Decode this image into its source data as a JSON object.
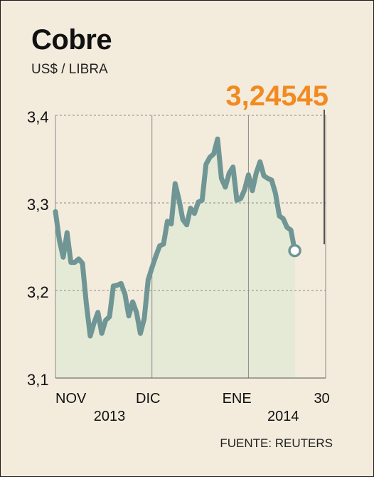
{
  "chart_data": {
    "type": "line",
    "title": "Cobre",
    "subtitle": "US$ / LIBRA",
    "source": "FUENTE: REUTERS",
    "last_value_label": "3,24545",
    "ylim": [
      3.1,
      3.4
    ],
    "yticks": [
      3.1,
      3.2,
      3.3,
      3.4
    ],
    "ytick_labels": [
      "3,1",
      "3,2",
      "3,3",
      "3,4"
    ],
    "xlim": [
      0,
      70
    ],
    "x_month_lines": [
      0,
      25,
      50,
      70
    ],
    "x_labels": [
      {
        "text": "NOV",
        "x": 4
      },
      {
        "text": "DIC",
        "x": 24
      },
      {
        "text": "ENE",
        "x": 47
      },
      {
        "text": "30",
        "x": 69
      }
    ],
    "year_labels": [
      {
        "text": "2013",
        "x": 14
      },
      {
        "text": "2014",
        "x": 59
      }
    ],
    "grid": true,
    "colors": {
      "line": "#6f9694",
      "area": "#e5ead7",
      "highlight": "#f28a20",
      "grid": "#8a8a8a",
      "marker_fill": "#ffffff"
    },
    "series": [
      {
        "values": [
          [
            0,
            3.29
          ],
          [
            1,
            3.258
          ],
          [
            2,
            3.238
          ],
          [
            3,
            3.266
          ],
          [
            4,
            3.232
          ],
          [
            5,
            3.232
          ],
          [
            6,
            3.236
          ],
          [
            7,
            3.231
          ],
          [
            8,
            3.185
          ],
          [
            9,
            3.148
          ],
          [
            10,
            3.163
          ],
          [
            11,
            3.175
          ],
          [
            12,
            3.151
          ],
          [
            13,
            3.166
          ],
          [
            14,
            3.17
          ],
          [
            15,
            3.205
          ],
          [
            16,
            3.206
          ],
          [
            17,
            3.208
          ],
          [
            18,
            3.196
          ],
          [
            19,
            3.171
          ],
          [
            20,
            3.187
          ],
          [
            21,
            3.175
          ],
          [
            22,
            3.151
          ],
          [
            23,
            3.168
          ],
          [
            24,
            3.212
          ],
          [
            25,
            3.226
          ],
          [
            26,
            3.239
          ],
          [
            27,
            3.251
          ],
          [
            28,
            3.253
          ],
          [
            29,
            3.279
          ],
          [
            30,
            3.276
          ],
          [
            31,
            3.322
          ],
          [
            32,
            3.304
          ],
          [
            33,
            3.281
          ],
          [
            34,
            3.275
          ],
          [
            35,
            3.294
          ],
          [
            36,
            3.288
          ],
          [
            37,
            3.301
          ],
          [
            38,
            3.303
          ],
          [
            39,
            3.344
          ],
          [
            40,
            3.352
          ],
          [
            41,
            3.356
          ],
          [
            42,
            3.373
          ],
          [
            43,
            3.328
          ],
          [
            44,
            3.318
          ],
          [
            45,
            3.334
          ],
          [
            46,
            3.341
          ],
          [
            47,
            3.303
          ],
          [
            48,
            3.305
          ],
          [
            49,
            3.315
          ],
          [
            50,
            3.332
          ],
          [
            51,
            3.314
          ],
          [
            52,
            3.334
          ],
          [
            53,
            3.347
          ],
          [
            54,
            3.331
          ],
          [
            55,
            3.328
          ],
          [
            56,
            3.326
          ],
          [
            57,
            3.311
          ],
          [
            58,
            3.285
          ],
          [
            59,
            3.282
          ],
          [
            60,
            3.272
          ],
          [
            61,
            3.269
          ],
          [
            62,
            3.24545
          ]
        ]
      }
    ]
  }
}
